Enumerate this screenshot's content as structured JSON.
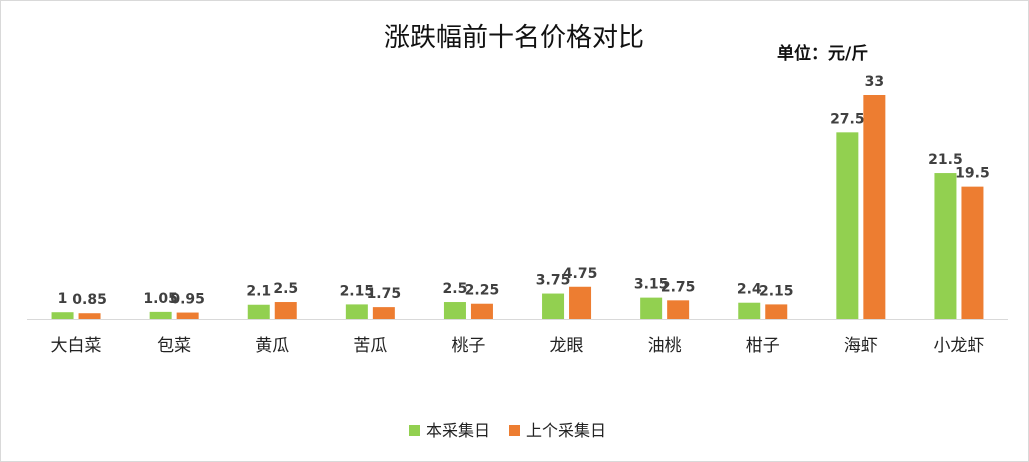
{
  "chart_data": {
    "type": "bar",
    "title": "涨跌幅前十名价格对比",
    "unit": "单位：元/斤",
    "categories": [
      "大白菜",
      "包菜",
      "黄瓜",
      "苦瓜",
      "桃子",
      "龙眼",
      "油桃",
      "柑子",
      "海虾",
      "小龙虾"
    ],
    "series": [
      {
        "name": "本采集日",
        "color": "#92d050",
        "values": [
          1,
          1.05,
          2.1,
          2.15,
          2.5,
          3.75,
          3.15,
          2.4,
          27.5,
          21.5
        ],
        "labels": [
          "1",
          "1.05",
          "2.1",
          "2.15",
          "2.5",
          "3.75",
          "3.15",
          "2.4",
          "27.5",
          "21.5"
        ]
      },
      {
        "name": "上个采集日",
        "color": "#ed7d31",
        "values": [
          0.85,
          0.95,
          2.5,
          1.75,
          2.25,
          4.75,
          2.75,
          2.15,
          33,
          19.5
        ],
        "labels": [
          "0.85",
          "0.95",
          "2.5",
          "1.75",
          "2.25",
          "4.75",
          "2.75",
          "2.15",
          "33",
          "19.5"
        ]
      }
    ],
    "ylim": [
      0,
      33
    ],
    "grid": false,
    "legend": "bottom"
  }
}
